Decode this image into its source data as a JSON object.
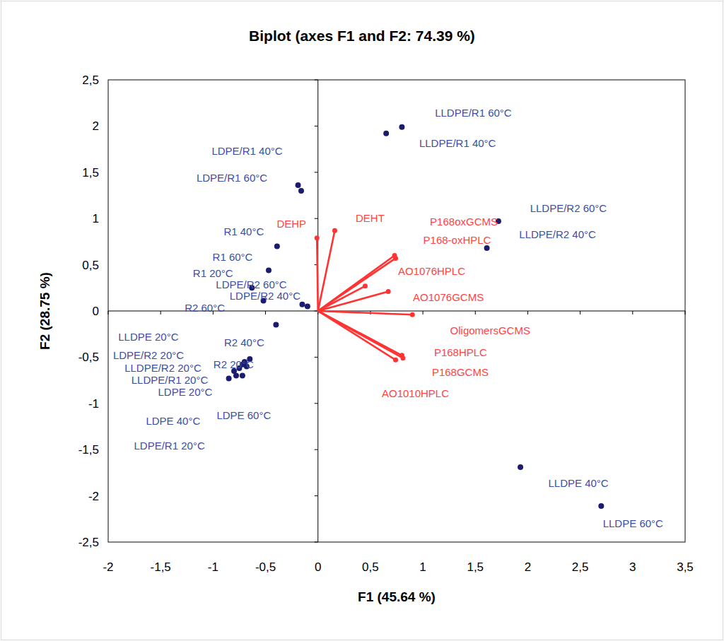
{
  "chart_data": {
    "type": "scatter",
    "title": "Biplot (axes F1 and F2: 74.39 %)",
    "x_label": "F1 (45.64 %)",
    "y_label": "F2 (28.75 %)",
    "xlim": [
      -2,
      3.5
    ],
    "ylim": [
      -2.5,
      2.5
    ],
    "xticks": [
      -2,
      {
        "value": -1.5,
        "label": "-1,5"
      },
      -1,
      {
        "value": -0.5,
        "label": "-0,5"
      },
      0,
      {
        "value": 0.5,
        "label": "0,5"
      },
      1,
      {
        "value": 1.5,
        "label": "1,5"
      },
      2,
      {
        "value": 2.5,
        "label": "2,5"
      },
      3,
      {
        "value": 3.5,
        "label": "3,5"
      }
    ],
    "yticks": [
      {
        "value": -2.5,
        "label": "-2,5"
      },
      -2,
      {
        "value": -1.5,
        "label": "-1,5"
      },
      -1,
      {
        "value": -0.5,
        "label": "-0,5"
      },
      0,
      {
        "value": 0.5,
        "label": "0,5"
      },
      1,
      {
        "value": 1.5,
        "label": "1,5"
      },
      2,
      {
        "value": 2.5,
        "label": "2,5"
      }
    ],
    "grid": false,
    "series": [
      {
        "type": "scatter",
        "marker": "circle",
        "color": "#1c1c6e",
        "labels": [
          "LDPE 20°C",
          "LDPE 40°C",
          "LDPE 60°C",
          "LLDPE 20°C",
          "LLDPE 40°C",
          "LLDPE 60°C",
          "R1 20°C",
          "R1 40°C",
          "R1 60°C",
          "R2 20°C",
          "R2 40°C",
          "R2 60°C",
          "LDPE/R1 20°C",
          "LDPE/R1 40°C",
          "LDPE/R1 60°C",
          "LDPE/R2 20°C",
          "LDPE/R2 40°C",
          "LDPE/R2 60°C",
          "LLDPE/R1 20°C",
          "LLDPE/R1 40°C",
          "LLDPE/R1 60°C",
          "LLDPE/R2 20°C",
          "LLDPE/R2 40°C",
          "LLDPE/R2 60°C"
        ],
        "x": [
          -0.72,
          -0.7,
          -0.68,
          -0.72,
          1.93,
          2.7,
          -0.63,
          -0.39,
          -0.47,
          -0.65,
          -0.4,
          -0.52,
          -0.85,
          -0.19,
          -0.16,
          -0.8,
          -0.1,
          -0.15,
          -0.78,
          0.65,
          0.8,
          -0.75,
          1.61,
          1.72
        ],
        "values": [
          -0.7,
          -0.55,
          -0.6,
          -0.58,
          -1.69,
          -2.11,
          0.25,
          0.7,
          0.44,
          -0.52,
          -0.15,
          0.11,
          -0.73,
          1.36,
          1.3,
          -0.65,
          0.05,
          0.07,
          -0.7,
          1.92,
          1.99,
          -0.62,
          0.68,
          0.97
        ]
      },
      {
        "type": "vector",
        "marker": "circle",
        "color": "#ff3333",
        "labels": [
          "DEHP",
          "DEHT",
          "P168oxGCMS",
          "P168-oxHPLC",
          "AO1076HPLC",
          "AO1076GCMS",
          "OligomersGCMS",
          "P168HPLC",
          "P168GCMS",
          "AO1010HPLC"
        ],
        "x": [
          -0.01,
          0.16,
          0.73,
          0.74,
          0.45,
          0.67,
          0.9,
          0.8,
          0.81,
          0.74
        ],
        "values": [
          0.79,
          0.87,
          0.6,
          0.57,
          0.27,
          0.21,
          -0.04,
          -0.48,
          -0.51,
          -0.53
        ]
      }
    ]
  }
}
